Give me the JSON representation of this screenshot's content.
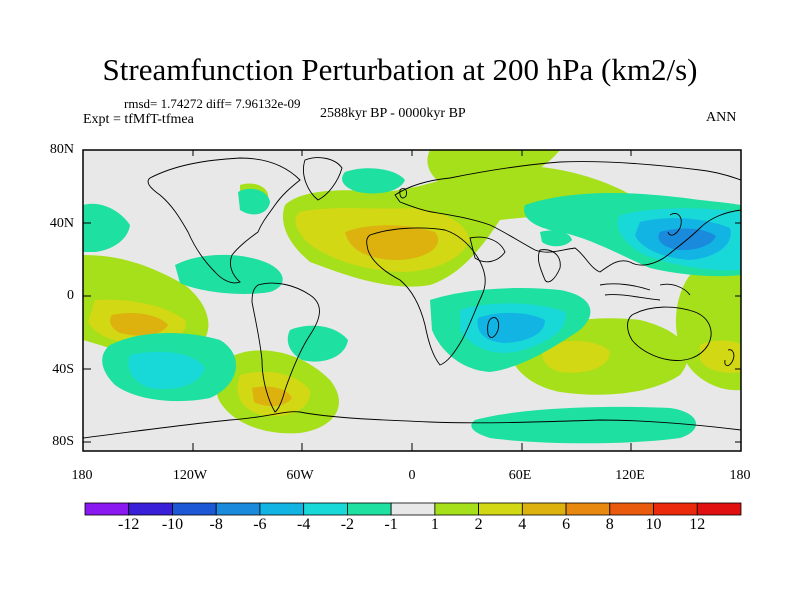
{
  "header": {
    "title": "Streamfunction Perturbation at 200 hPa (km2/s)",
    "stats": "rmsd= 1.74272 diff= 7.96132e-09",
    "experiment": "Expt = tfMfT-tfmea",
    "period": "2588kyr BP - 0000kyr BP",
    "season": "ANN"
  },
  "axes": {
    "lat_ticks": [
      "80N",
      "40N",
      "0",
      "40S",
      "80S"
    ],
    "lon_ticks": [
      "180",
      "120W",
      "60W",
      "0",
      "60E",
      "120E",
      "180"
    ]
  },
  "colorbar": {
    "labels": [
      "-12",
      "-10",
      "-8",
      "-6",
      "-4",
      "-2",
      "-1",
      "1",
      "2",
      "4",
      "6",
      "8",
      "10",
      "12"
    ],
    "colors": [
      "#8a18f0",
      "#3a1fd8",
      "#1c57d6",
      "#1a8bdc",
      "#12b4e4",
      "#19d8d8",
      "#1ee0a0",
      "#e8e8e8",
      "#a5e01a",
      "#d2d814",
      "#ddb20f",
      "#e8880f",
      "#ea5a0d",
      "#ea2a0a",
      "#e01010"
    ]
  },
  "colors": {
    "background": "#e8e8e8",
    "coast": "#000000"
  }
}
